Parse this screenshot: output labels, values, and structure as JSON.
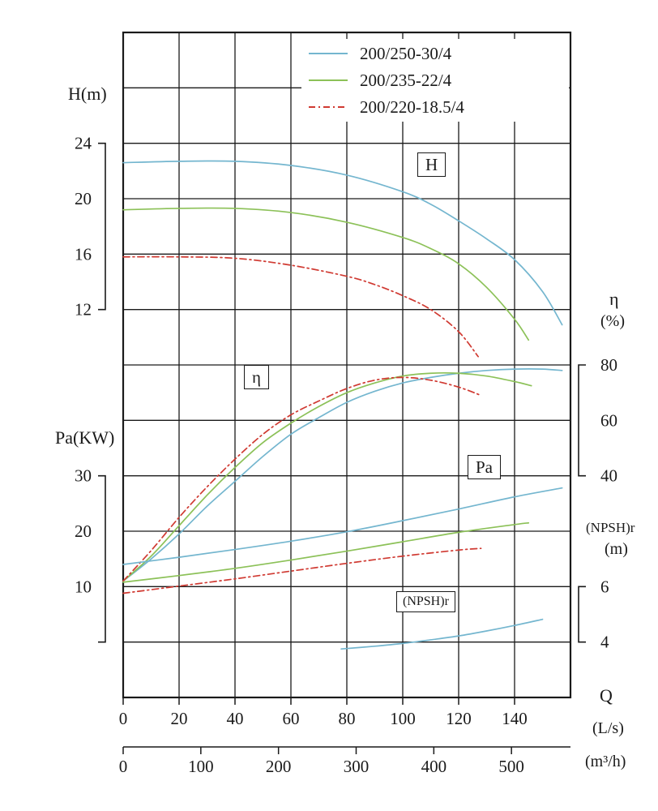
{
  "axis_labels": {
    "h_title": "H(m)",
    "pa_title": "Pa(KW)",
    "eta_title": "η",
    "eta_unit": "(%)",
    "npsh_title": "(NPSH)r",
    "npsh_unit": "(m)",
    "q_title": "Q",
    "q_unit_ls": "(L/s)",
    "q_unit_m3h": "(m³/h)"
  },
  "curve_labels": {
    "h": "H",
    "eta": "η",
    "pa": "Pa",
    "npsh": "(NPSH)r"
  },
  "legend": {
    "items": [
      {
        "label": "200/250-30/4",
        "color": "#74b6cf",
        "dash": "solid"
      },
      {
        "label": "200/235-22/4",
        "color": "#8cc158",
        "dash": "solid"
      },
      {
        "label": "200/220-18.5/4",
        "color": "#d03a32",
        "dash": "dashdot"
      }
    ]
  },
  "chart_data": {
    "type": "line",
    "grid": true,
    "legend_position": "top-right",
    "x_axis": {
      "label": "Q",
      "primary_unit": "L/s",
      "secondary_unit": "m³/h",
      "secondary_factor": 3.6,
      "range_Ls": [
        0,
        160
      ],
      "ticks_Ls": [
        0,
        20,
        40,
        60,
        80,
        100,
        120,
        140
      ],
      "ticks_m3h": [
        0,
        100,
        200,
        300,
        400,
        500
      ]
    },
    "y_axes": {
      "H": {
        "label": "H(m)",
        "ticks": [
          24,
          20,
          16,
          12
        ]
      },
      "eta": {
        "label": "η(%)",
        "ticks": [
          80,
          60,
          40
        ]
      },
      "Pa": {
        "label": "Pa(KW)",
        "ticks": [
          30,
          20,
          10
        ]
      },
      "NPSH": {
        "label": "(NPSH)r(m)",
        "ticks": [
          6,
          4
        ]
      }
    },
    "series": [
      {
        "name": "200/250-30/4",
        "quantity": "H",
        "axis": "H",
        "color": "#74b6cf",
        "dash": "solid",
        "x": [
          0,
          20,
          40,
          60,
          80,
          100,
          110,
          120,
          130,
          140,
          150,
          157
        ],
        "y": [
          22.6,
          22.7,
          22.7,
          22.4,
          21.7,
          20.5,
          19.6,
          18.4,
          17.1,
          15.6,
          13.3,
          10.9
        ]
      },
      {
        "name": "200/235-22/4",
        "quantity": "H",
        "axis": "H",
        "color": "#8cc158",
        "dash": "solid",
        "x": [
          0,
          20,
          40,
          60,
          80,
          100,
          110,
          120,
          130,
          140,
          145
        ],
        "y": [
          19.2,
          19.3,
          19.3,
          19.0,
          18.3,
          17.2,
          16.4,
          15.3,
          13.6,
          11.3,
          9.8
        ]
      },
      {
        "name": "200/220-18.5/4",
        "quantity": "H",
        "axis": "H",
        "color": "#d03a32",
        "dash": "dashdot",
        "x": [
          0,
          20,
          40,
          60,
          80,
          90,
          100,
          110,
          120,
          127
        ],
        "y": [
          15.8,
          15.8,
          15.7,
          15.2,
          14.4,
          13.8,
          13.0,
          12.0,
          10.4,
          8.6
        ]
      },
      {
        "name": "200/250-30/4",
        "quantity": "eta",
        "axis": "eta",
        "color": "#74b6cf",
        "dash": "solid",
        "x": [
          0,
          10,
          20,
          30,
          40,
          50,
          60,
          70,
          80,
          90,
          100,
          110,
          120,
          130,
          140,
          150,
          157
        ],
        "y": [
          2,
          10,
          19,
          29,
          38,
          47,
          55,
          61,
          66.5,
          70.5,
          73.5,
          75.5,
          77,
          78,
          78.5,
          78.5,
          78
        ]
      },
      {
        "name": "200/235-22/4",
        "quantity": "eta",
        "axis": "eta",
        "color": "#8cc158",
        "dash": "solid",
        "x": [
          0,
          10,
          20,
          30,
          40,
          50,
          60,
          70,
          80,
          90,
          100,
          110,
          120,
          130,
          140,
          146
        ],
        "y": [
          2,
          11,
          22,
          33,
          43,
          52,
          59,
          65,
          70,
          73.5,
          76,
          77,
          77,
          76,
          74,
          72.5
        ]
      },
      {
        "name": "200/220-18.5/4",
        "quantity": "eta",
        "axis": "eta",
        "color": "#d03a32",
        "dash": "dashdot",
        "x": [
          0,
          10,
          20,
          30,
          40,
          50,
          60,
          70,
          80,
          90,
          100,
          110,
          120,
          128
        ],
        "y": [
          2,
          13,
          25,
          36,
          46,
          55,
          62,
          67,
          71.5,
          74.5,
          75.5,
          74.5,
          72,
          69
        ]
      },
      {
        "name": "200/250-30/4",
        "quantity": "Pa",
        "axis": "Pa",
        "color": "#74b6cf",
        "dash": "solid",
        "x": [
          0,
          20,
          40,
          60,
          80,
          100,
          120,
          140,
          157
        ],
        "y": [
          14,
          15.3,
          16.7,
          18.2,
          19.9,
          21.9,
          24,
          26.2,
          27.8
        ]
      },
      {
        "name": "200/235-22/4",
        "quantity": "Pa",
        "axis": "Pa",
        "color": "#8cc158",
        "dash": "solid",
        "x": [
          0,
          20,
          40,
          60,
          80,
          100,
          120,
          140,
          145
        ],
        "y": [
          10.8,
          12,
          13.3,
          14.8,
          16.4,
          18.1,
          19.8,
          21.2,
          21.5
        ]
      },
      {
        "name": "200/220-18.5/4",
        "quantity": "Pa",
        "axis": "Pa",
        "color": "#d03a32",
        "dash": "dashdot",
        "x": [
          0,
          20,
          40,
          60,
          80,
          100,
          120,
          128
        ],
        "y": [
          8.8,
          10.1,
          11.4,
          12.8,
          14.2,
          15.5,
          16.6,
          16.9
        ]
      },
      {
        "name": "200/250-30/4",
        "quantity": "NPSH",
        "axis": "NPSH",
        "color": "#74b6cf",
        "dash": "solid",
        "x": [
          78,
          90,
          100,
          110,
          120,
          130,
          140,
          150
        ],
        "y": [
          3.75,
          3.85,
          3.95,
          4.08,
          4.22,
          4.4,
          4.6,
          4.82
        ]
      }
    ]
  }
}
